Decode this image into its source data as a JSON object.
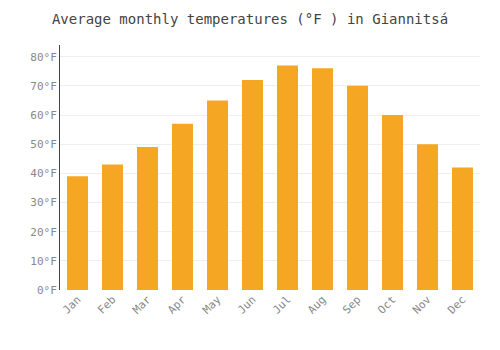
{
  "chart_data": {
    "type": "bar",
    "title": "Average monthly temperatures (°F ) in Giannitsá",
    "categories": [
      "Jan",
      "Feb",
      "Mar",
      "Apr",
      "May",
      "Jun",
      "Jul",
      "Aug",
      "Sep",
      "Oct",
      "Nov",
      "Dec"
    ],
    "values": [
      39,
      43,
      49,
      57,
      65,
      72,
      77,
      76,
      70,
      60,
      50,
      42
    ],
    "color": "#F5A623",
    "ylim": [
      0,
      84
    ],
    "yticks": [
      {
        "value": 0,
        "label": "0°F"
      },
      {
        "value": 10,
        "label": "10°F"
      },
      {
        "value": 20,
        "label": "20°F"
      },
      {
        "value": 30,
        "label": "30°F"
      },
      {
        "value": 40,
        "label": "40°F"
      },
      {
        "value": 50,
        "label": "50°F"
      },
      {
        "value": 60,
        "label": "60°F"
      },
      {
        "value": 70,
        "label": "70°F"
      },
      {
        "value": 80,
        "label": "80°F"
      }
    ],
    "grid": true
  }
}
